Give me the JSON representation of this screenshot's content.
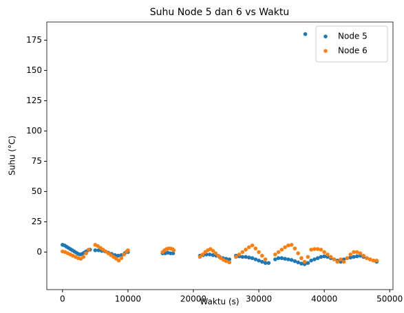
{
  "chart_data": {
    "type": "scatter",
    "title": "Suhu Node 5 dan 6 vs Waktu",
    "x_label": "Waktu (s)",
    "y_label": "Suhu (°C)",
    "xlim": [
      -2400,
      50500
    ],
    "ylim": [
      -31,
      190
    ],
    "xticks": [
      0,
      10000,
      20000,
      30000,
      40000,
      50000
    ],
    "yticks": [
      0,
      25,
      50,
      75,
      100,
      125,
      150,
      175
    ],
    "legend": "upper right",
    "series": [
      {
        "name": "Node 5",
        "color": "#1f77b4",
        "x": [
          0,
          300,
          600,
          900,
          1200,
          1500,
          1800,
          2100,
          2400,
          2700,
          3000,
          3300,
          3600,
          3900,
          4200,
          5000,
          5500,
          6000,
          6500,
          7000,
          7500,
          8000,
          8500,
          9000,
          9500,
          10000,
          15300,
          15700,
          16100,
          16500,
          16900,
          21000,
          21500,
          22000,
          22500,
          23000,
          23500,
          24000,
          24500,
          25000,
          25500,
          26500,
          27000,
          27500,
          28000,
          28500,
          29000,
          29500,
          30000,
          30500,
          31000,
          31500,
          32500,
          33000,
          33500,
          34000,
          34500,
          35000,
          35500,
          36000,
          36500,
          37000,
          37500,
          37100,
          38000,
          38500,
          39000,
          39500,
          40000,
          40500,
          41000,
          41500,
          42000,
          42500,
          43000,
          43500,
          44000,
          44500,
          45000,
          45500,
          46000,
          46500,
          47000,
          47500,
          48000
        ],
        "values": [
          6,
          5.5,
          4.5,
          3.5,
          2.5,
          1.5,
          0.5,
          -0.5,
          -1.5,
          -2,
          -1.5,
          -0.5,
          0.5,
          1.5,
          2,
          1.5,
          1.5,
          1,
          0.5,
          -0.5,
          -1.5,
          -2.5,
          -3,
          -2.5,
          -1,
          0,
          -1,
          -1,
          -0.5,
          -1,
          -1,
          -3,
          -2.5,
          -2,
          -2,
          -2.5,
          -3,
          -4,
          -5,
          -5.5,
          -6,
          -3,
          -3.5,
          -4,
          -4,
          -4.5,
          -5,
          -6,
          -7,
          -8,
          -9,
          -9,
          -6,
          -5,
          -5,
          -5.5,
          -6,
          -6.5,
          -7.5,
          -8.5,
          -9.5,
          -10,
          -9,
          180,
          -7,
          -6,
          -5,
          -4,
          -3.5,
          -4,
          -5,
          -6,
          -7,
          -8,
          -6,
          -5,
          -4.5,
          -4,
          -3.5,
          -3,
          -4,
          -5,
          -6,
          -7,
          -8
        ]
      },
      {
        "name": "Node 6",
        "color": "#ff7f0e",
        "x": [
          0,
          400,
          800,
          1200,
          1600,
          2000,
          2400,
          2800,
          3200,
          3600,
          4000,
          5000,
          5400,
          5800,
          6200,
          6600,
          7000,
          7400,
          7800,
          8200,
          8600,
          9000,
          9400,
          9800,
          10000,
          15300,
          15600,
          15900,
          16200,
          16500,
          16800,
          17000,
          21000,
          21400,
          21800,
          22200,
          22600,
          23000,
          23400,
          23800,
          24200,
          24600,
          25000,
          25500,
          26500,
          27000,
          27500,
          28000,
          28500,
          29000,
          29500,
          30000,
          30500,
          31000,
          32500,
          33000,
          33500,
          34000,
          34500,
          35000,
          35500,
          36000,
          36500,
          37000,
          37500,
          38000,
          38500,
          39000,
          39500,
          40000,
          40500,
          41000,
          41500,
          42000,
          42500,
          43000,
          43500,
          44000,
          44500,
          45000,
          45500,
          46000,
          46500,
          47000,
          47500,
          48000
        ],
        "values": [
          0.5,
          0,
          -1,
          -2,
          -3,
          -4,
          -5,
          -5.5,
          -4,
          -1,
          2,
          6,
          5,
          3.5,
          2,
          0.5,
          -1,
          -2.5,
          -4,
          -5.5,
          -7,
          -5,
          -2,
          0.5,
          1.5,
          0,
          1.5,
          2.5,
          3,
          3,
          2.5,
          1.5,
          -4,
          -2,
          0,
          1.5,
          2.5,
          1,
          -1,
          -3,
          -5,
          -6.5,
          -7.5,
          -8.5,
          -4,
          -2,
          0,
          2,
          4,
          5.5,
          3,
          0,
          -3,
          -6,
          -2,
          0,
          2,
          4,
          5.5,
          6,
          3,
          -1,
          -5,
          -8,
          -4,
          2,
          2.5,
          2.5,
          2,
          0,
          -2,
          -4,
          -6,
          -8,
          -6,
          -8,
          -5,
          -2,
          0,
          0,
          -1,
          -3,
          -5,
          -6,
          -7,
          -7
        ]
      }
    ]
  }
}
